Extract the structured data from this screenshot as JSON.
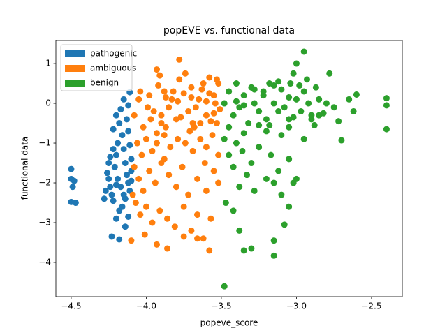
{
  "chart_data": {
    "type": "scatter",
    "title": "popEVE vs. functional data",
    "x_label": "popeve_score",
    "y_label": "functional data",
    "xlim": [
      -4.602,
      -2.295
    ],
    "ylim": [
      -4.86,
      1.58
    ],
    "xticks": [
      {
        "value": -4.5,
        "label": "−4.5"
      },
      {
        "value": -4.0,
        "label": "−4.0"
      },
      {
        "value": -3.5,
        "label": "−3.5"
      },
      {
        "value": -3.0,
        "label": "−3.0"
      },
      {
        "value": -2.5,
        "label": "−2.5"
      }
    ],
    "yticks": [
      1,
      0,
      {
        "value": -1,
        "label": "−1"
      },
      {
        "value": -2,
        "label": "−2"
      },
      {
        "value": -3,
        "label": "−3"
      },
      {
        "value": -4,
        "label": "−4"
      }
    ],
    "grid": false,
    "legend": "upper left",
    "series": [
      {
        "name": "pathogenic",
        "color": "#1f77b4",
        "x": [
          -4.5,
          -4.5,
          -4.49,
          -4.5,
          -4.47,
          -4.48,
          -4.25,
          -4.24,
          -4.23,
          -4.22,
          -4.21,
          -4.2,
          -4.19,
          -4.22,
          -4.2,
          -4.18,
          -4.16,
          -4.15,
          -4.14,
          -4.13,
          -4.12,
          -4.11,
          -4.14,
          -4.16,
          -4.18,
          -4.2,
          -4.23,
          -4.18,
          -4.14,
          -4.12,
          -4.25,
          -4.26,
          -4.27,
          -4.28,
          -4.24,
          -4.22,
          -4.17,
          -4.15,
          -4.12,
          -4.11,
          -4.13,
          -4.12,
          -4.11,
          -4.1,
          -4.1,
          -4.1,
          -4.19,
          -4.17,
          -4.15,
          -4.2
        ],
        "values": [
          -1.65,
          -1.9,
          -2.1,
          -2.48,
          -2.5,
          -1.95,
          -1.9,
          -2.1,
          -2.3,
          -2.45,
          -1.6,
          -1.3,
          -1.0,
          -0.65,
          -0.3,
          -0.5,
          -0.8,
          -1.15,
          -1.5,
          -1.8,
          -2.0,
          -2.2,
          -2.4,
          -2.6,
          -2.7,
          -2.9,
          -3.35,
          -3.42,
          -3.1,
          -2.85,
          -1.5,
          -1.75,
          -2.2,
          -2.4,
          -1.35,
          -1.15,
          -0.15,
          0.1,
          -0.05,
          0.28,
          -0.4,
          -0.7,
          -1.05,
          -1.4,
          -1.7,
          -1.95,
          -1.9,
          -2.1,
          -2.3,
          -2.05
        ]
      },
      {
        "name": "ambiguous",
        "color": "#ff7f0e",
        "x": [
          -4.08,
          -4.05,
          -4.02,
          -3.98,
          -3.95,
          -3.92,
          -3.9,
          -3.87,
          -3.85,
          -3.82,
          -3.8,
          -3.78,
          -3.75,
          -3.72,
          -3.7,
          -3.68,
          -3.65,
          -3.62,
          -3.6,
          -3.58,
          -3.55,
          -3.53,
          -3.52,
          -3.51,
          -4.06,
          -4.03,
          -4.0,
          -3.96,
          -3.93,
          -3.88,
          -3.84,
          -3.79,
          -3.74,
          -3.69,
          -3.64,
          -3.6,
          -3.56,
          -3.52,
          -4.08,
          -4.05,
          -4.02,
          -3.98,
          -3.94,
          -3.9,
          -3.85,
          -3.8,
          -3.76,
          -3.72,
          -3.66,
          -3.6,
          -3.55,
          -3.52,
          -4.07,
          -4.04,
          -4.0,
          -3.96,
          -3.91,
          -3.86,
          -3.81,
          -3.75,
          -3.7,
          -3.66,
          -3.62,
          -3.57,
          -4.1,
          -4.01,
          -3.93,
          -3.86,
          -3.75,
          -3.66,
          -3.58,
          -4.09,
          -3.97,
          -3.88,
          -3.78,
          -3.71,
          -3.63,
          -3.57,
          -3.54,
          -3.9,
          -3.83,
          -3.77,
          -3.67,
          -3.6,
          -3.55,
          -4.04,
          -3.99,
          -3.91,
          -3.79,
          -3.7,
          -3.64,
          -3.58,
          -3.53,
          -3.87,
          -3.93,
          -3.74,
          -3.69,
          -3.61,
          -3.88,
          -3.93
        ],
        "values": [
          -0.3,
          0.1,
          -0.6,
          0.2,
          -0.2,
          0.45,
          -0.5,
          0.15,
          -0.1,
          0.3,
          -0.4,
          1.1,
          0.25,
          -0.2,
          0.4,
          -0.6,
          0.1,
          0.5,
          -0.3,
          0.65,
          0.2,
          -0.5,
          0.5,
          -0.15,
          -1.0,
          -1.3,
          -0.9,
          -1.2,
          0.85,
          -0.8,
          -1.1,
          -0.9,
          -1.0,
          -1.2,
          -0.9,
          -1.1,
          -0.8,
          -1.3,
          -1.6,
          -1.9,
          -2.2,
          -1.7,
          -2.0,
          -1.5,
          -1.8,
          -2.1,
          -1.6,
          -2.3,
          -1.9,
          -2.2,
          -1.7,
          -2.0,
          -2.5,
          -2.8,
          -2.6,
          -3.0,
          -2.7,
          -2.9,
          -3.1,
          -2.6,
          -3.2,
          -2.8,
          -3.4,
          -2.9,
          -3.45,
          -3.3,
          -3.55,
          -3.65,
          -3.35,
          -3.4,
          -3.7,
          -2.3,
          -0.4,
          0.3,
          0.6,
          -0.7,
          0.35,
          -0.45,
          0.0,
          -0.3,
          0.1,
          -0.35,
          -0.1,
          0.05,
          -0.25,
          0.3,
          -0.1,
          0.7,
          0.05,
          0.15,
          -0.5,
          0.25,
          0.6,
          -0.6,
          -0.75,
          0.75,
          -0.5,
          -1.5,
          -1.4,
          -1.0
        ]
      },
      {
        "name": "benign",
        "color": "#2ca02c",
        "x": [
          -3.48,
          -3.45,
          -3.42,
          -3.4,
          -3.38,
          -3.35,
          -3.32,
          -3.3,
          -3.28,
          -3.25,
          -3.22,
          -3.2,
          -3.18,
          -3.15,
          -3.12,
          -3.1,
          -3.08,
          -3.05,
          -3.02,
          -3.0,
          -2.97,
          -2.95,
          -2.92,
          -2.9,
          -2.87,
          -2.85,
          -2.82,
          -2.8,
          -2.78,
          -2.75,
          -2.72,
          -2.7,
          -2.65,
          -2.62,
          -2.6,
          -2.4,
          -2.4,
          -2.4,
          -2.95,
          -2.9,
          -3.0,
          -3.02,
          -3.05,
          -3.48,
          -3.45,
          -3.42,
          -3.4,
          -3.38,
          -3.36,
          -3.33,
          -3.3,
          -3.28,
          -3.25,
          -3.2,
          -3.17,
          -3.15,
          -3.12,
          -3.1,
          -3.05,
          -3.02,
          -3.0,
          -2.95,
          -3.05,
          -3.08,
          -3.47,
          -3.42,
          -3.38,
          -3.35,
          -3.3,
          -3.15,
          -3.15,
          -3.48,
          -3.1,
          -3.2,
          -3.35,
          -3.45,
          -3.25,
          -3.05,
          -2.88,
          -2.85,
          -3.15,
          -3.22,
          -3.28,
          -3.35,
          -3.12,
          -3.04,
          -2.98,
          -2.93,
          -3.4,
          -3.18
        ],
        "values": [
          0.0,
          0.3,
          -0.3,
          0.5,
          -0.1,
          0.2,
          -0.5,
          0.4,
          0.0,
          -0.2,
          0.3,
          -0.4,
          0.5,
          0.0,
          -0.2,
          0.35,
          -0.1,
          0.15,
          -0.35,
          0.1,
          -0.2,
          0.3,
          0.0,
          -0.3,
          0.4,
          0.1,
          -0.25,
          0.0,
          0.75,
          -0.1,
          -0.45,
          -0.93,
          0.1,
          -0.2,
          0.22,
          0.13,
          -0.05,
          -0.65,
          1.3,
          -0.4,
          1.0,
          0.75,
          -0.6,
          -0.9,
          -1.3,
          -1.6,
          -1.0,
          -2.1,
          -1.2,
          -1.8,
          -1.5,
          -2.2,
          -1.1,
          -1.9,
          -1.3,
          -2.0,
          -1.7,
          -2.3,
          -1.4,
          -2.0,
          -1.9,
          -0.9,
          -2.6,
          -3.05,
          -2.5,
          -2.7,
          -3.2,
          -3.7,
          -3.65,
          -3.45,
          -3.83,
          -4.6,
          -0.8,
          -0.7,
          -0.75,
          -0.6,
          -0.55,
          -0.4,
          -0.55,
          -0.3,
          0.45,
          0.2,
          0.35,
          -0.05,
          0.55,
          0.5,
          0.45,
          0.6,
          0.05,
          -0.55
        ]
      }
    ]
  }
}
